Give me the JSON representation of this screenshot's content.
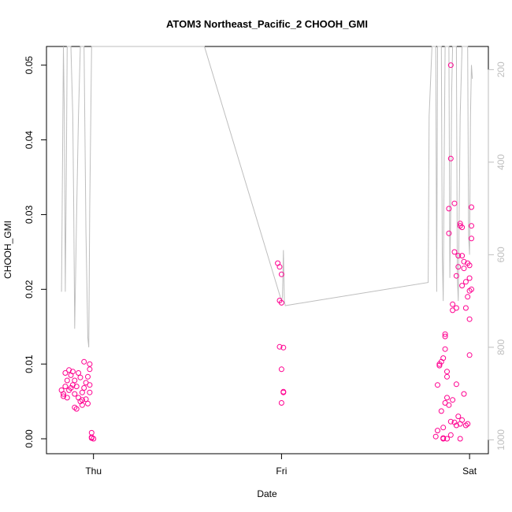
{
  "chart_data": {
    "type": "scatter",
    "title": "ATOM3 Northeast_Pacific_2 CHOOH_GMI",
    "xlabel": "Date",
    "ylabel": "CHOOH_GMI",
    "x_ticks": [
      "Thu",
      "Fri",
      "Sat"
    ],
    "ylim": [
      -0.002,
      0.0525
    ],
    "y_ticks": [
      "0.00",
      "0.01",
      "0.02",
      "0.03",
      "0.04",
      "0.05"
    ],
    "right_axis": {
      "ylim": [
        1030,
        150
      ],
      "ticks": [
        "200",
        "400",
        "600",
        "800",
        "1000"
      ],
      "color": "#bebebe"
    },
    "colors": {
      "points": "#ff0090",
      "line": "#bebebe"
    },
    "series": [
      {
        "kind": "points",
        "points": [
          [
            -0.17,
            0.0065
          ],
          [
            -0.16,
            0.006
          ],
          [
            -0.16,
            0.0057
          ],
          [
            -0.15,
            0.007
          ],
          [
            -0.15,
            0.0088
          ],
          [
            -0.14,
            0.0055
          ],
          [
            -0.14,
            0.0078
          ],
          [
            -0.13,
            0.0092
          ],
          [
            -0.13,
            0.0065
          ],
          [
            -0.12,
            0.0068
          ],
          [
            -0.12,
            0.0085
          ],
          [
            -0.11,
            0.0072
          ],
          [
            -0.11,
            0.009
          ],
          [
            -0.1,
            0.006
          ],
          [
            -0.1,
            0.0078
          ],
          [
            -0.1,
            0.0042
          ],
          [
            -0.09,
            0.004
          ],
          [
            -0.09,
            0.007
          ],
          [
            -0.08,
            0.0088
          ],
          [
            -0.08,
            0.0055
          ],
          [
            -0.07,
            0.005
          ],
          [
            -0.07,
            0.0082
          ],
          [
            -0.06,
            0.0052
          ],
          [
            -0.06,
            0.0062
          ],
          [
            -0.06,
            0.0045
          ],
          [
            -0.05,
            0.0103
          ],
          [
            -0.05,
            0.0068
          ],
          [
            -0.04,
            0.0075
          ],
          [
            -0.04,
            0.0053
          ],
          [
            -0.03,
            0.0047
          ],
          [
            -0.03,
            0.0083
          ],
          [
            -0.02,
            0.01
          ],
          [
            -0.02,
            0.0093
          ],
          [
            -0.02,
            0.0072
          ],
          [
            -0.02,
            0.0062
          ],
          [
            -0.01,
            0.0008
          ],
          [
            -0.01,
            0.0002
          ],
          [
            -0.01,
            0.0001
          ],
          [
            0.0,
            0.0
          ],
          [
            0.98,
            0.0235
          ],
          [
            0.99,
            0.023
          ],
          [
            0.99,
            0.0185
          ],
          [
            0.99,
            0.0123
          ],
          [
            1.0,
            0.022
          ],
          [
            1.0,
            0.0182
          ],
          [
            1.01,
            0.0122
          ],
          [
            1.0,
            0.0093
          ],
          [
            1.01,
            0.0063
          ],
          [
            1.01,
            0.0062
          ],
          [
            1.0,
            0.0048
          ],
          [
            1.82,
            0.0003
          ],
          [
            1.83,
            0.0011
          ],
          [
            1.83,
            0.0072
          ],
          [
            1.84,
            0.0098
          ],
          [
            1.84,
            0.01
          ],
          [
            1.85,
            0.0103
          ],
          [
            1.85,
            0.0037
          ],
          [
            1.86,
            0.0001
          ],
          [
            1.86,
            0.0
          ],
          [
            1.86,
            0.0015
          ],
          [
            1.87,
            0.014
          ],
          [
            1.87,
            0.0137
          ],
          [
            1.87,
            0.0048
          ],
          [
            1.88,
            0.0083
          ],
          [
            1.88,
            0.009
          ],
          [
            1.89,
            0.0308
          ],
          [
            1.89,
            0.0275
          ],
          [
            1.9,
            0.05
          ],
          [
            1.9,
            0.0375
          ],
          [
            1.91,
            0.018
          ],
          [
            1.91,
            0.0172
          ],
          [
            1.92,
            0.0315
          ],
          [
            1.92,
            0.025
          ],
          [
            1.93,
            0.0218
          ],
          [
            1.93,
            0.0175
          ],
          [
            1.93,
            0.0073
          ],
          [
            1.94,
            0.0245
          ],
          [
            1.94,
            0.023
          ],
          [
            1.95,
            0.0285
          ],
          [
            1.95,
            0.0288
          ],
          [
            1.96,
            0.0283
          ],
          [
            1.96,
            0.0205
          ],
          [
            1.96,
            0.0245
          ],
          [
            1.97,
            0.0237
          ],
          [
            1.97,
            0.0228
          ],
          [
            1.98,
            0.021
          ],
          [
            1.98,
            0.0175
          ],
          [
            1.99,
            0.0235
          ],
          [
            1.99,
            0.019
          ],
          [
            2.0,
            0.016
          ],
          [
            2.0,
            0.0232
          ],
          [
            2.0,
            0.0215
          ],
          [
            2.0,
            0.0198
          ],
          [
            2.01,
            0.031
          ],
          [
            2.01,
            0.0285
          ],
          [
            2.01,
            0.0268
          ],
          [
            2.01,
            0.02
          ],
          [
            2.0,
            0.0112
          ],
          [
            1.88,
            0.0055
          ],
          [
            1.89,
            0.0045
          ],
          [
            1.9,
            0.0023
          ],
          [
            1.91,
            0.0052
          ],
          [
            1.92,
            0.0022
          ],
          [
            1.93,
            0.0018
          ],
          [
            1.94,
            0.003
          ],
          [
            1.95,
            0.002
          ],
          [
            1.96,
            0.0025
          ],
          [
            1.97,
            0.006
          ],
          [
            1.86,
            0.0108
          ],
          [
            1.87,
            0.012
          ],
          [
            1.9,
            0.0005
          ],
          [
            1.88,
            0.0
          ],
          [
            1.95,
            0.0
          ],
          [
            1.98,
            0.0018
          ],
          [
            1.99,
            0.002
          ]
        ]
      },
      {
        "kind": "line",
        "axis": "right",
        "points": [
          [
            -0.17,
            680
          ],
          [
            -0.165,
            420
          ],
          [
            -0.16,
            150
          ],
          [
            -0.155,
            300
          ],
          [
            -0.15,
            680
          ],
          [
            -0.145,
            450
          ],
          [
            -0.14,
            150
          ],
          [
            -0.12,
            150
          ],
          [
            -0.11,
            300
          ],
          [
            -0.105,
            500
          ],
          [
            -0.1,
            760
          ],
          [
            -0.09,
            520
          ],
          [
            -0.08,
            300
          ],
          [
            -0.07,
            150
          ],
          [
            -0.05,
            150
          ],
          [
            -0.04,
            550
          ],
          [
            -0.03,
            780
          ],
          [
            -0.025,
            800
          ],
          [
            -0.02,
            500
          ],
          [
            -0.01,
            150
          ],
          [
            0.0,
            150
          ],
          [
            0.59,
            150
          ],
          [
            1.0,
            700
          ],
          [
            1.005,
            690
          ],
          [
            1.01,
            590
          ],
          [
            1.015,
            700
          ],
          [
            1.02,
            710
          ],
          [
            1.78,
            660
          ],
          [
            1.785,
            300
          ],
          [
            1.8,
            150
          ],
          [
            1.82,
            150
          ],
          [
            1.825,
            680
          ],
          [
            1.83,
            150
          ],
          [
            1.85,
            150
          ],
          [
            1.855,
            600
          ],
          [
            1.86,
            700
          ],
          [
            1.865,
            400
          ],
          [
            1.87,
            150
          ],
          [
            1.89,
            150
          ],
          [
            1.895,
            650
          ],
          [
            1.9,
            500
          ],
          [
            1.905,
            250
          ],
          [
            1.91,
            150
          ],
          [
            1.93,
            150
          ],
          [
            1.935,
            650
          ],
          [
            1.94,
            700
          ],
          [
            1.945,
            500
          ],
          [
            1.95,
            300
          ],
          [
            1.96,
            150
          ],
          [
            1.99,
            150
          ],
          [
            1.995,
            560
          ],
          [
            2.0,
            600
          ],
          [
            2.005,
            300
          ],
          [
            2.01,
            190
          ],
          [
            2.015,
            220
          ]
        ]
      }
    ]
  }
}
